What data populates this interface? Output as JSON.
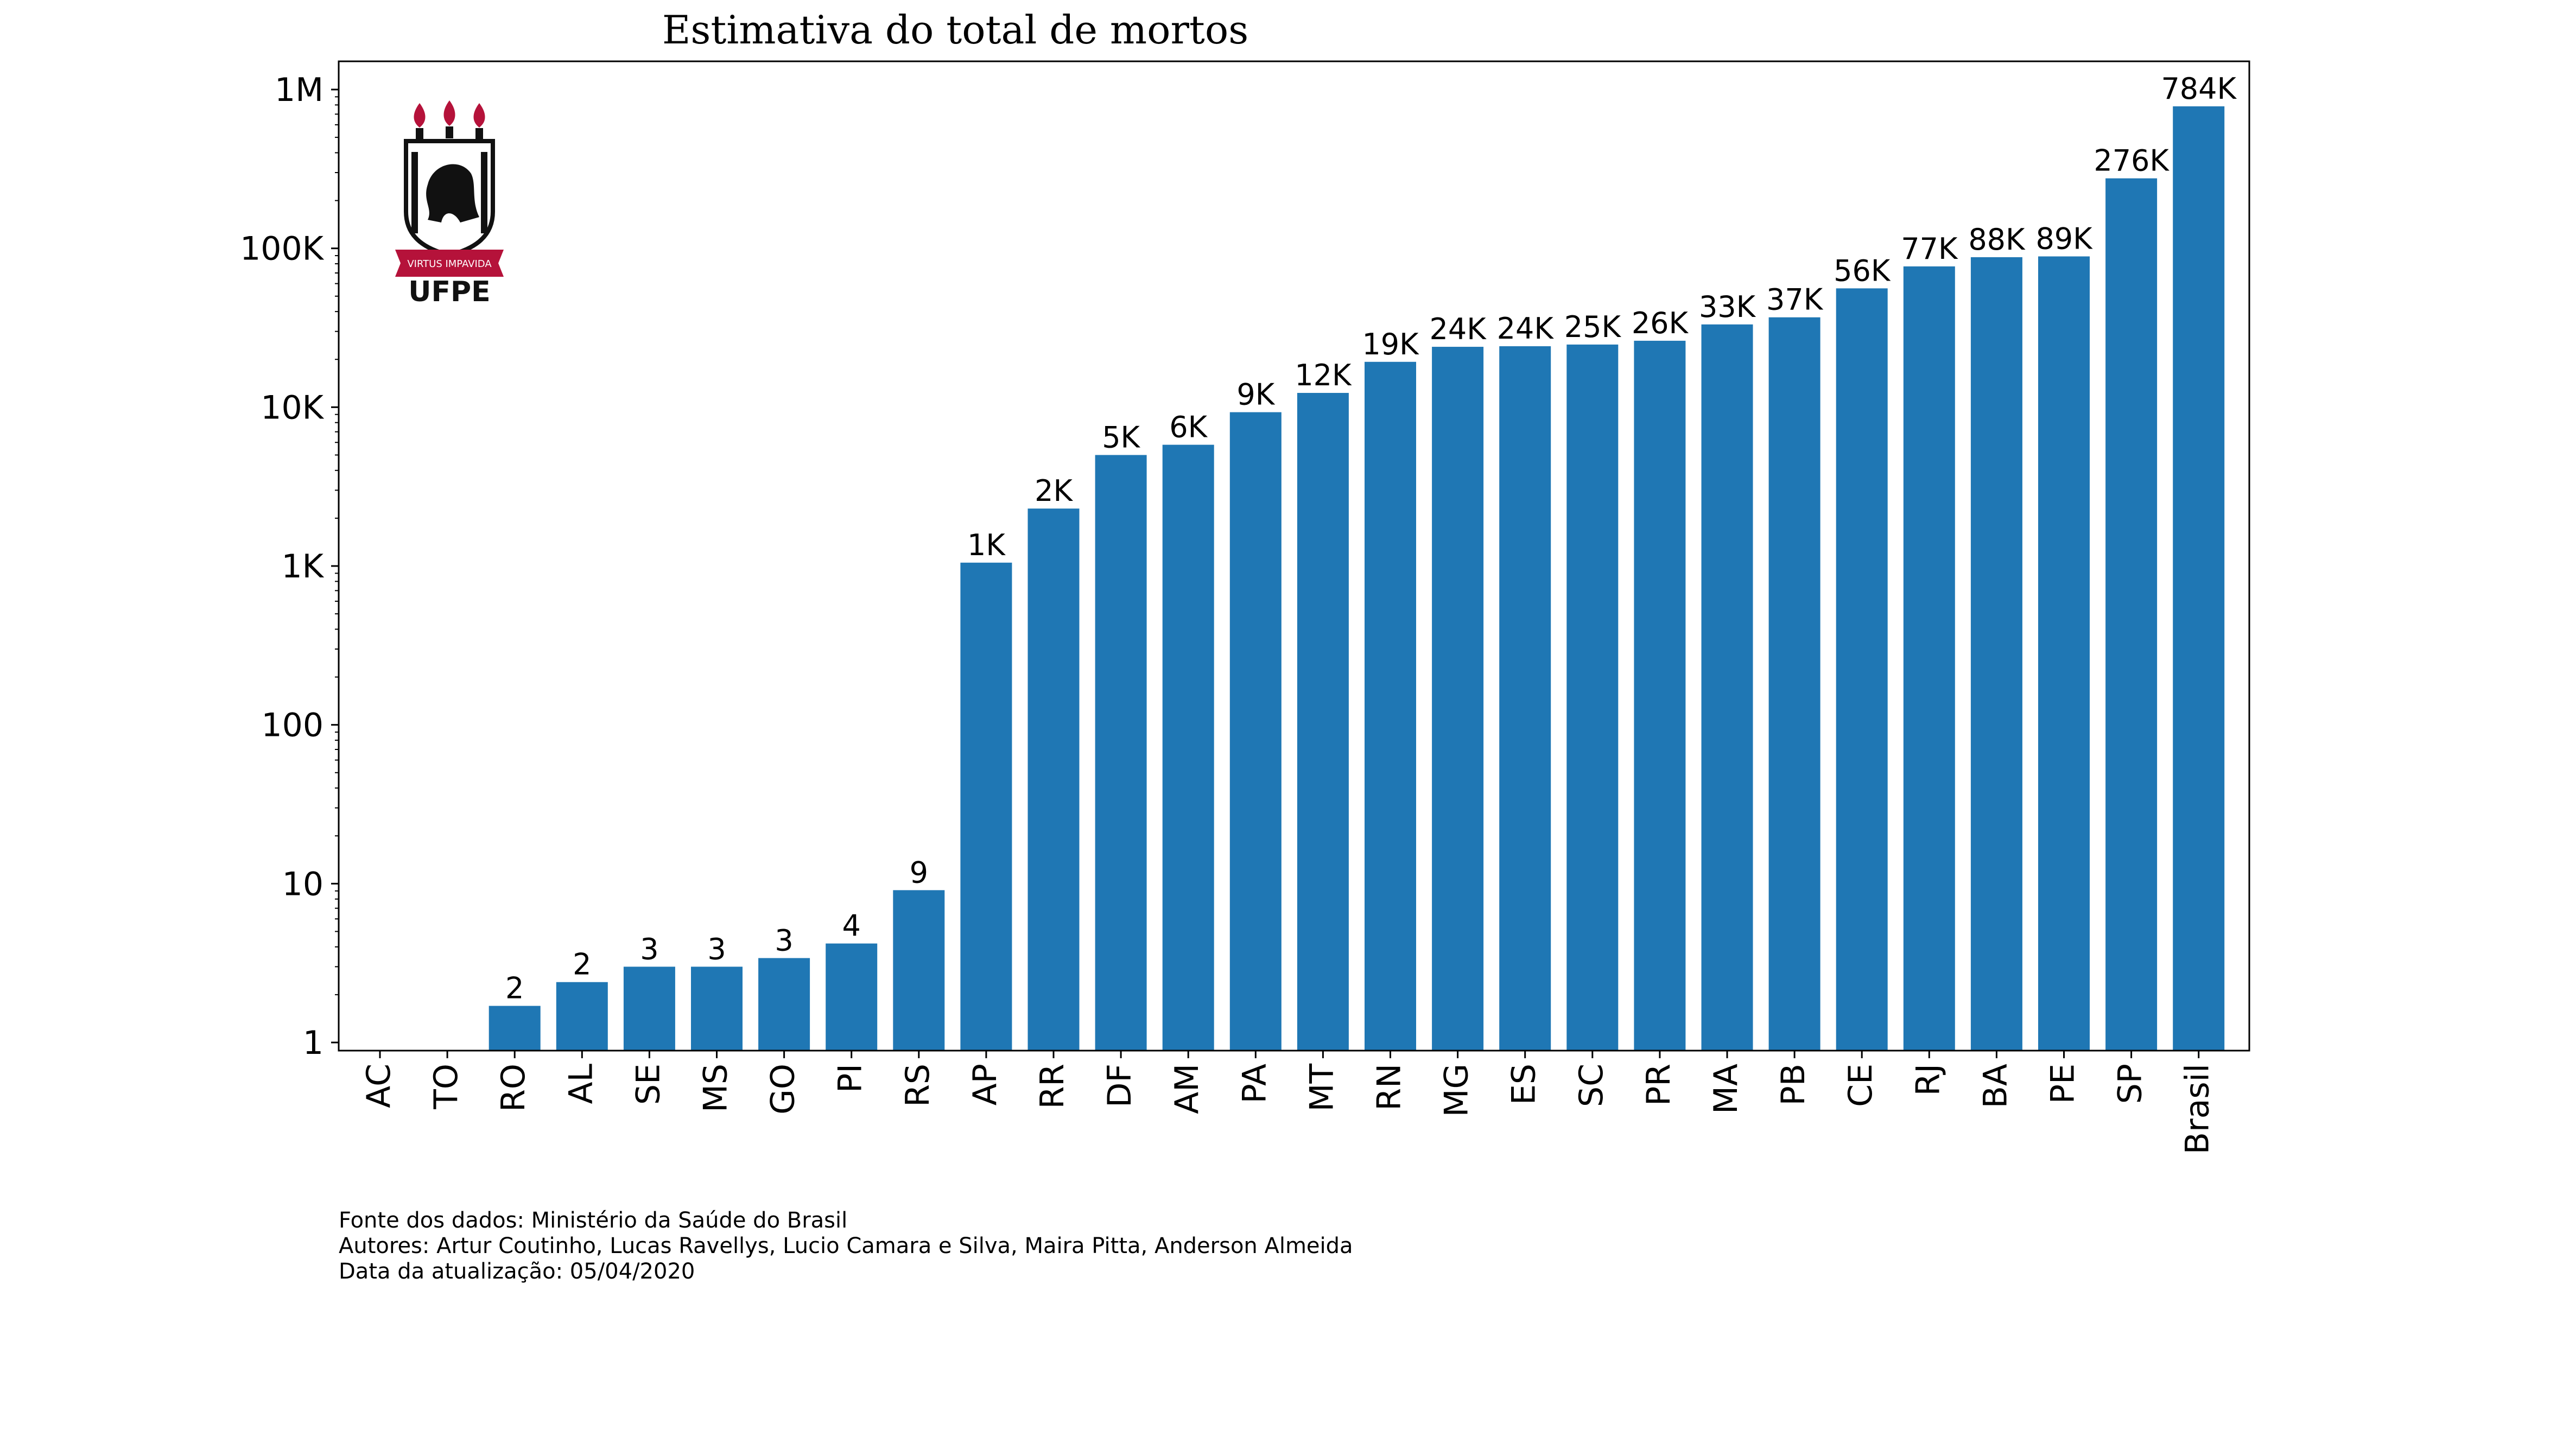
{
  "chart_data": {
    "type": "bar",
    "title": "Estimativa do total de mortos",
    "xlabel": "",
    "ylabel": "",
    "yscale": "log",
    "ylim": [
      1,
      1000000
    ],
    "yticks": [
      1,
      10,
      100,
      1000,
      10000,
      100000,
      1000000
    ],
    "ytick_labels": [
      "1",
      "10",
      "100",
      "1K",
      "10K",
      "100K",
      "1M"
    ],
    "grid": false,
    "bar_color": "#1f77b4",
    "categories": [
      "AC",
      "TO",
      "RO",
      "AL",
      "SE",
      "MS",
      "GO",
      "PI",
      "RS",
      "AP",
      "RR",
      "DF",
      "AM",
      "PA",
      "MT",
      "RN",
      "MG",
      "ES",
      "SC",
      "PR",
      "MA",
      "PB",
      "CE",
      "RJ",
      "BA",
      "PE",
      "SP",
      "Brasil"
    ],
    "values": [
      0,
      0,
      1.7,
      2.4,
      3,
      3,
      3.4,
      4.2,
      9.1,
      1050,
      2300,
      5000,
      5800,
      9300,
      12300,
      19300,
      24000,
      24200,
      24800,
      26200,
      33200,
      36800,
      56000,
      77000,
      88000,
      89000,
      276000,
      784000
    ],
    "data_labels": [
      "",
      "",
      "2",
      "2",
      "3",
      "3",
      "3",
      "4",
      "9",
      "1K",
      "2K",
      "5K",
      "6K",
      "9K",
      "12K",
      "19K",
      "24K",
      "24K",
      "25K",
      "26K",
      "33K",
      "37K",
      "56K",
      "77K",
      "88K",
      "89K",
      "276K",
      "784K"
    ]
  },
  "footer": {
    "line1": "Fonte dos dados: Ministério da Saúde do Brasil",
    "line2": "Autores: Artur Coutinho, Lucas Ravellys, Lucio Camara e Silva, Maira Pitta, Anderson Almeida",
    "line3": "Data da atualização: 05/04/2020"
  },
  "logo": {
    "motto": "VIRTUS IMPAVIDA",
    "name": "UFPE",
    "accent_color": "#b5123a"
  }
}
